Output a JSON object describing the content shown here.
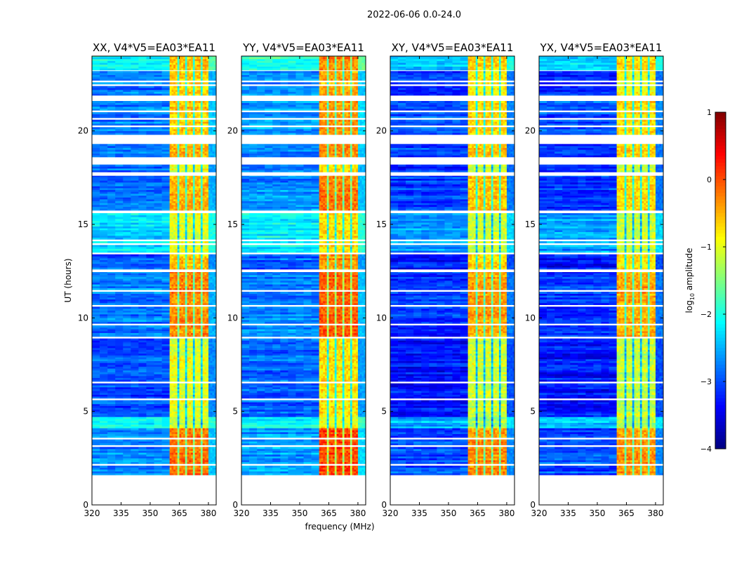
{
  "chart_data": {
    "type": "heatmap",
    "suptitle": "2022-06-06 0.0-24.0",
    "xlabel": "frequency (MHz)",
    "ylabel": "UT (hours)",
    "xlim": [
      320,
      384
    ],
    "ylim": [
      0,
      24
    ],
    "xticks": [
      320,
      335,
      350,
      365,
      380
    ],
    "yticks": [
      0,
      5,
      10,
      15,
      20
    ],
    "colorbar": {
      "label": "log10 amplitude",
      "label_main": "log",
      "label_sub": "10",
      "label_rest": " amplitude",
      "range": [
        -4,
        1
      ],
      "ticks": [
        1,
        0,
        -1,
        -2,
        -3,
        -4
      ],
      "ticklabels": [
        "1",
        "0",
        "−1",
        "−2",
        "−3",
        "−4"
      ]
    },
    "band_edge_mhz": 360.5,
    "band_top_mhz": 380,
    "subband_edges_mhz": [
      364.5,
      368.5,
      372.5,
      376.5
    ],
    "panels": [
      {
        "title": "XX, V4*V5=EA03*EA11",
        "low_offset": 0.0,
        "high_offset": 0.0
      },
      {
        "title": "YY, V4*V5=EA03*EA11",
        "low_offset": 0.1,
        "high_offset": 0.25
      },
      {
        "title": "XY, V4*V5=EA03*EA11",
        "low_offset": -0.3,
        "high_offset": -0.1
      },
      {
        "title": "YX, V4*V5=EA03*EA11",
        "low_offset": -0.3,
        "high_offset": -0.15
      }
    ],
    "time_segments_hours": [
      {
        "t": [
          23.25,
          24.0
        ],
        "low": -2.0,
        "high": -0.5
      },
      {
        "t": [
          21.9,
          23.2
        ],
        "low": -2.8,
        "high": -0.7
      },
      {
        "t": [
          19.8,
          21.6
        ],
        "low": -2.7,
        "high": -0.6
      },
      {
        "t": [
          18.6,
          19.3
        ],
        "low": -2.8,
        "high": -0.5
      },
      {
        "t": [
          17.8,
          18.2
        ],
        "low": -2.9,
        "high": -1.0
      },
      {
        "t": [
          15.75,
          17.6
        ],
        "low": -2.8,
        "high": -0.5
      },
      {
        "t": [
          13.5,
          15.6
        ],
        "low": -2.3,
        "high": -1.0
      },
      {
        "t": [
          12.6,
          13.4
        ],
        "low": -3.0,
        "high": -0.6
      },
      {
        "t": [
          9.0,
          12.45
        ],
        "low": -2.8,
        "high": -0.3
      },
      {
        "t": [
          4.7,
          8.9
        ],
        "low": -3.0,
        "high": -1.0
      },
      {
        "t": [
          4.1,
          4.7
        ],
        "low": -2.2,
        "high": -1.2
      },
      {
        "t": [
          1.6,
          4.1
        ],
        "low": -2.7,
        "high": -0.2
      }
    ],
    "flagged_hours": [
      [
        22.4,
        22.5
      ],
      [
        22.6,
        22.7
      ],
      [
        21.0,
        21.1
      ],
      [
        20.6,
        20.7
      ],
      [
        20.2,
        20.3
      ],
      [
        18.4,
        18.6
      ],
      [
        14.1,
        14.2
      ],
      [
        13.9,
        14.0
      ],
      [
        11.4,
        11.5
      ],
      [
        10.6,
        10.7
      ],
      [
        9.6,
        9.7
      ],
      [
        6.5,
        6.6
      ],
      [
        5.6,
        5.7
      ],
      [
        3.5,
        3.6
      ],
      [
        3.1,
        3.2
      ],
      [
        2.1,
        2.2
      ]
    ]
  }
}
